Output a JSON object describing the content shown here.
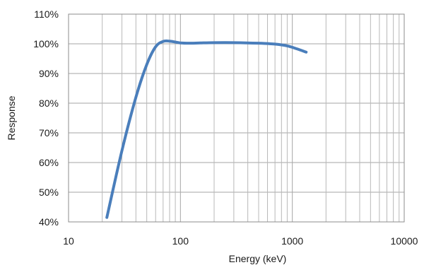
{
  "chart_data": {
    "type": "line",
    "title": "",
    "xlabel": "Energy (keV)",
    "ylabel": "Response",
    "x_scale": "log",
    "xlim": [
      10,
      10000
    ],
    "ylim": [
      40,
      110
    ],
    "x_ticks": [
      {
        "value": 10,
        "label": "10"
      },
      {
        "value": 100,
        "label": "100"
      },
      {
        "value": 1000,
        "label": "1000"
      },
      {
        "value": 10000,
        "label": "10000"
      }
    ],
    "y_ticks": [
      {
        "value": 40,
        "label": "40%"
      },
      {
        "value": 50,
        "label": "50%"
      },
      {
        "value": 60,
        "label": "60%"
      },
      {
        "value": 70,
        "label": "70%"
      },
      {
        "value": 80,
        "label": "80%"
      },
      {
        "value": 90,
        "label": "90%"
      },
      {
        "value": 100,
        "label": "100%"
      },
      {
        "value": 110,
        "label": "110%"
      }
    ],
    "grid": true,
    "series": [
      {
        "color": "#4a7ebb",
        "x": [
          22,
          30,
          40,
          50,
          60,
          70,
          80,
          90,
          100,
          120,
          150,
          200,
          300,
          500,
          700,
          900,
          1100,
          1330
        ],
        "y": [
          41.5,
          64,
          82,
          93,
          99,
          100.8,
          100.9,
          100.6,
          100.3,
          100.2,
          100.3,
          100.4,
          100.4,
          100.2,
          99.9,
          99.3,
          98.3,
          97.2
        ]
      }
    ]
  }
}
